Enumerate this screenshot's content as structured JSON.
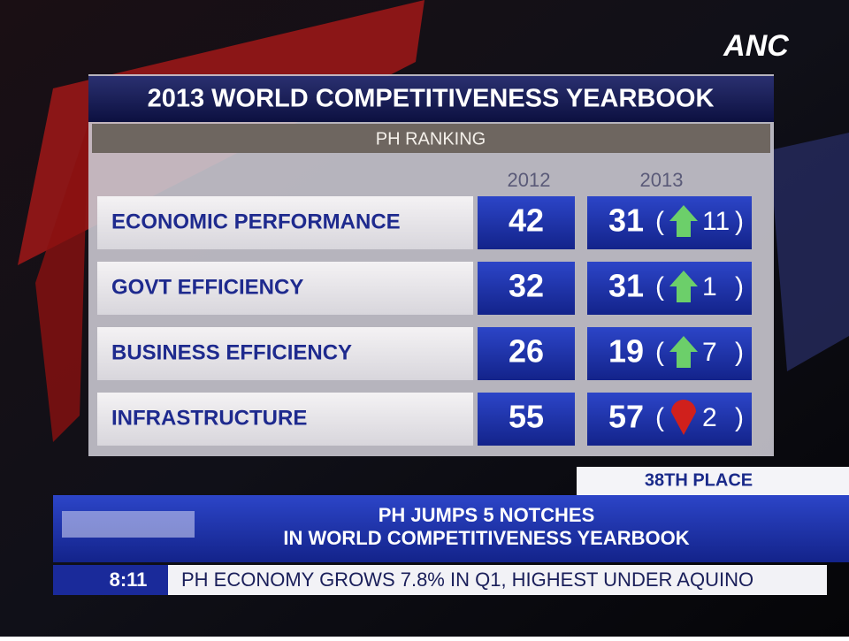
{
  "logo": "ANC",
  "table": {
    "title": "2013 WORLD COMPETITIVENESS YEARBOOK",
    "subtitle": "PH RANKING",
    "columns": [
      "2012",
      "2013"
    ],
    "change_brackets": [
      "(",
      ")"
    ],
    "rows": [
      {
        "label": "ECONOMIC PERFORMANCE",
        "rank_2012": 42,
        "rank_2013": 31,
        "change": 11,
        "direction": "up"
      },
      {
        "label": "GOVT EFFICIENCY",
        "rank_2012": 32,
        "rank_2013": 31,
        "change": 1,
        "direction": "up"
      },
      {
        "label": "BUSINESS EFFICIENCY",
        "rank_2012": 26,
        "rank_2013": 19,
        "change": 7,
        "direction": "up"
      },
      {
        "label": "INFRASTRUCTURE",
        "rank_2012": 55,
        "rank_2013": 57,
        "change": 2,
        "direction": "down"
      }
    ]
  },
  "lower_third": {
    "tag": "38TH PLACE",
    "headline": [
      "PH JUMPS 5 NOTCHES",
      "IN WORLD COMPETITIVENESS YEARBOOK"
    ],
    "time": "8:11",
    "ticker": "PH ECONOMY GROWS 7.8% IN Q1, HIGHEST UNDER AQUINO"
  }
}
